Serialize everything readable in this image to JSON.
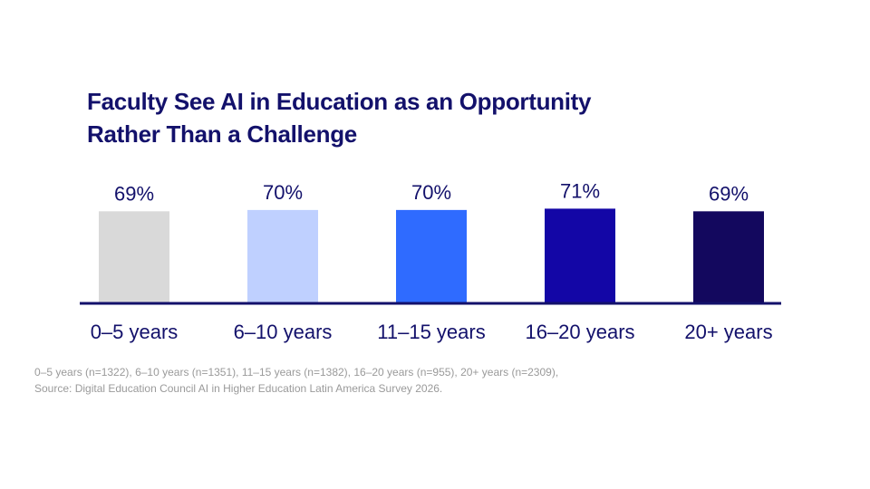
{
  "title": {
    "line1": "Faculty See AI in Education as an Opportunity",
    "line2": "Rather Than a Challenge"
  },
  "chart_data": {
    "type": "bar",
    "categories": [
      "0–5 years",
      "6–10 years",
      "11–15 years",
      "16–20 years",
      "20+ years"
    ],
    "values": [
      69,
      70,
      70,
      71,
      69
    ],
    "value_labels": [
      "69%",
      "70%",
      "70%",
      "71%",
      "69%"
    ],
    "unit": "%",
    "colors": [
      "#d9d9d9",
      "#bfd0ff",
      "#2f6bff",
      "#1306a6",
      "#13085e"
    ],
    "axis_color": "#13116b",
    "grid": false,
    "legend": "none",
    "title": "Faculty See AI in Education as an Opportunity Rather Than a Challenge",
    "xlabel": "",
    "ylabel": ""
  },
  "footnote": {
    "line1": "0–5 years (n=1322), 6–10 years (n=1351), 11–15 years (n=1382), 16–20 years (n=955), 20+ years (n=2309),",
    "line2": "Source: Digital Education Council AI in Higher Education Latin America Survey 2026."
  }
}
